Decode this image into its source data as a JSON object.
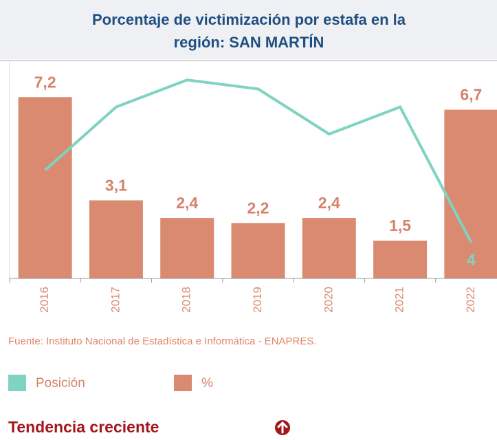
{
  "chart_data": {
    "type": "bar_line",
    "title_lines": [
      "Porcentaje de victimización por estafa en la",
      "región: SAN MARTÍN"
    ],
    "categories": [
      "2016",
      "2017",
      "2018",
      "2019",
      "2020",
      "2021",
      "2022"
    ],
    "series": [
      {
        "name": "Posición",
        "type": "line",
        "axis": "y2",
        "color": "#7fd3c0",
        "values": [
          12,
          19,
          22,
          21,
          16,
          19,
          4
        ],
        "value_labels": [
          null,
          null,
          null,
          null,
          null,
          null,
          "4"
        ]
      },
      {
        "name": "%",
        "type": "bar",
        "color": "#d98a70",
        "values": [
          7.2,
          3.1,
          2.4,
          2.2,
          2.4,
          1.5,
          6.7
        ],
        "value_labels": [
          "7,2",
          "3,1",
          "2,4",
          "2,2",
          "2,4",
          "1,5",
          "6,7"
        ]
      }
    ],
    "ylim": [
      0,
      8.6
    ],
    "y2lim": [
      0,
      24
    ],
    "source": "Fuente: Instituto Nacional de Estadística e Informática - ENAPRES.",
    "trend": "Tendencia creciente"
  }
}
